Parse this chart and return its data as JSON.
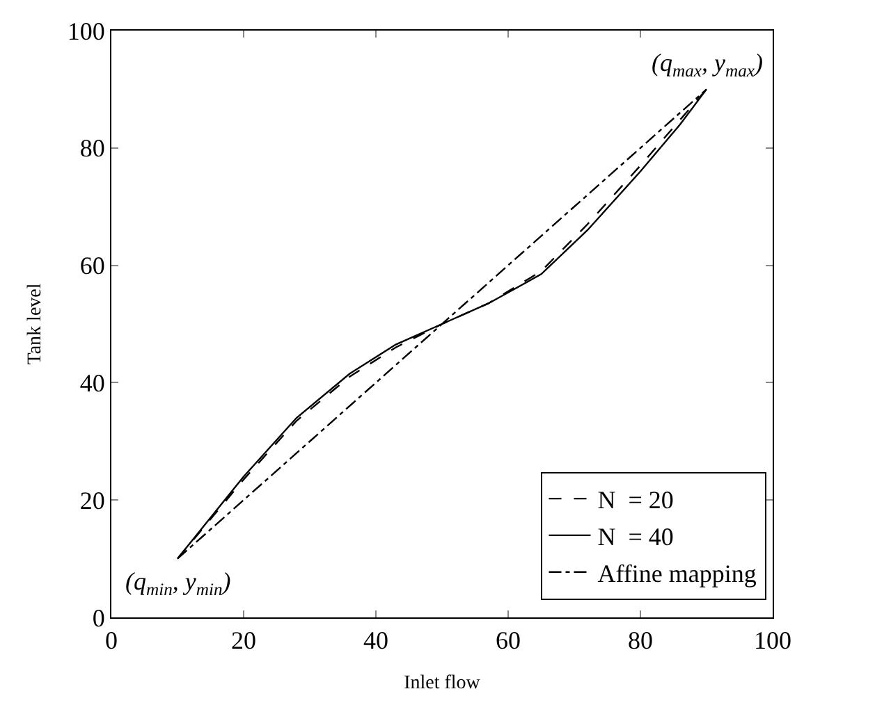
{
  "chart_data": {
    "type": "line",
    "xlabel": "Inlet flow",
    "ylabel": "Tank level",
    "xlim": [
      0,
      100
    ],
    "ylim": [
      0,
      100
    ],
    "xticks": [
      0,
      20,
      40,
      60,
      80,
      100
    ],
    "yticks": [
      0,
      20,
      40,
      60,
      80,
      100
    ],
    "legend": "bottom right",
    "marker": "none",
    "series": [
      {
        "name": "N  = 20",
        "color": "#000000",
        "line_style": "dashed",
        "x": [
          10,
          20,
          28,
          36,
          43,
          50,
          57,
          65,
          72,
          80,
          90
        ],
        "values": [
          10,
          23.5,
          33.5,
          41,
          46,
          50,
          53.5,
          59,
          67,
          77,
          90
        ]
      },
      {
        "name": "N  = 40",
        "color": "#000000",
        "line_style": "solid",
        "x": [
          10,
          15,
          20,
          28,
          36,
          43,
          50,
          57,
          65,
          72,
          80,
          86,
          90
        ],
        "values": [
          10,
          17,
          24,
          34,
          41.5,
          46.5,
          50,
          53.5,
          58.5,
          66,
          76,
          84,
          90
        ]
      },
      {
        "name": "Affine mapping",
        "color": "#000000",
        "line_style": "dashdot",
        "x": [
          10,
          90
        ],
        "values": [
          10,
          90
        ]
      }
    ],
    "annotations": [
      {
        "text": "(q$_{min}$, y$_{min}$)",
        "x": 10,
        "y": 10
      },
      {
        "text": "(q$_{max}$, y$_{max}$)",
        "x": 90,
        "y": 90
      }
    ]
  }
}
